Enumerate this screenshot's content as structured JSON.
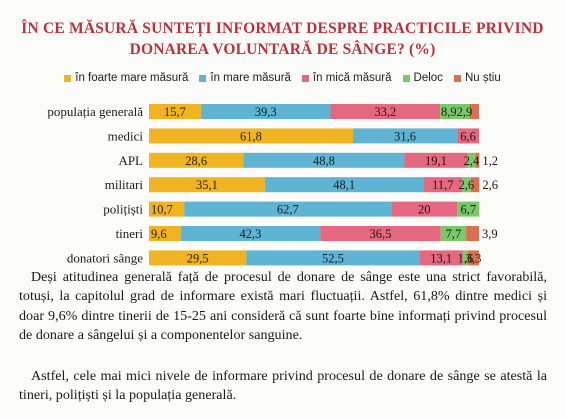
{
  "chart_data": {
    "type": "bar",
    "orientation": "horizontal",
    "stacked": true,
    "title_lines": [
      "ÎN CE MĂSURĂ SUNTEȚI INFORMAT DESPRE PRACTICILE PRIVIND",
      "DONAREA VOLUNTARĂ DE SÂNGE? (%)"
    ],
    "legend_placement": "top",
    "grid": false,
    "categories": [
      "populația generală",
      "medici",
      "APL",
      "militari",
      "polițiști",
      "tineri",
      "donatori sânge"
    ],
    "series": [
      {
        "name": "în foarte mare măsură",
        "color": "#f0b422",
        "values": [
          15.7,
          61.8,
          28.6,
          35.1,
          10.7,
          9.6,
          29.5
        ]
      },
      {
        "name": "în mare măsură",
        "color": "#5fb3d3",
        "values": [
          39.3,
          31.6,
          48.8,
          48.1,
          62.7,
          42.3,
          52.5
        ]
      },
      {
        "name": "în mică măsură",
        "color": "#e4687f",
        "values": [
          33.2,
          6.6,
          19.1,
          11.7,
          20,
          36.5,
          13.1
        ]
      },
      {
        "name": "Deloc",
        "color": "#7bc76b",
        "values": [
          8.9,
          null,
          2.4,
          2.6,
          6.7,
          7.7,
          1.6
        ]
      },
      {
        "name": "Nu știu",
        "color": "#d9704f",
        "values": [
          2.9,
          null,
          1.2,
          2.6,
          null,
          3.9,
          3.3
        ]
      }
    ],
    "labels": [
      [
        "15,7",
        "39,3",
        "33,2",
        "8,92,9",
        ""
      ],
      [
        "61,8",
        "31,6",
        "6,6",
        "",
        ""
      ],
      [
        "28,6",
        "48,8",
        "19,1",
        "2,4",
        "1,2"
      ],
      [
        "35,1",
        "48,1",
        "11,7",
        "2,6",
        "2,6"
      ],
      [
        "10,7",
        "62,7",
        "20",
        "6,7",
        ""
      ],
      [
        "9,6",
        "42,3",
        "36,5",
        "7,7",
        "3,9"
      ],
      [
        "29,5",
        "52,5",
        "13,1",
        "1,6",
        "3,3"
      ]
    ]
  },
  "paragraphs": [
    "Deși atitudinea generală față de procesul de donare de sânge este una strict favorabilă, totuși, la capitolul grad de informare există mari fluctuații. Astfel, 61,8% dintre medici și doar 9,6% dintre tinerii de 15-25 ani consideră că sunt foarte bine informați privind procesul de donare a sângelui și a componentelor sanguine.",
    "Astfel, cele mai mici nivele de informare privind procesul de donare de sânge se atestă la tineri, polițiști și la populația generală."
  ]
}
